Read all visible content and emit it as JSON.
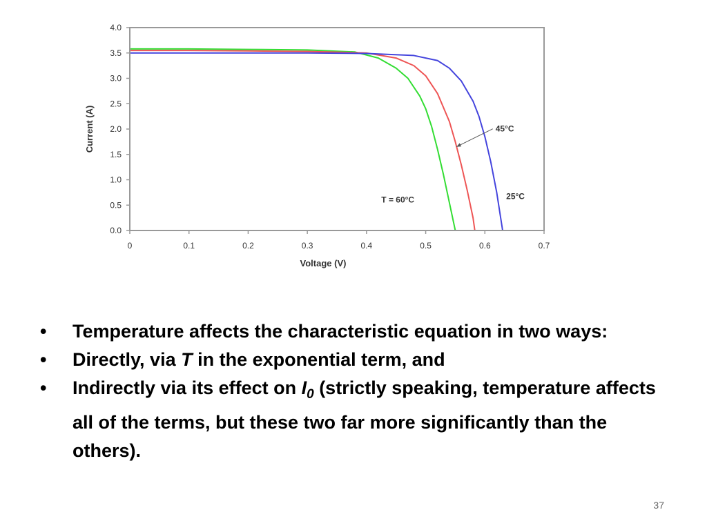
{
  "chart_data": {
    "type": "line",
    "xlabel": "Voltage (V)",
    "ylabel": "Current (A)",
    "xlim": [
      0,
      0.7
    ],
    "ylim": [
      0,
      4.0
    ],
    "x_ticks": [
      "0",
      "0.1",
      "0.2",
      "0.3",
      "0.4",
      "0.5",
      "0.6",
      "0.7"
    ],
    "y_ticks": [
      "0.0",
      "0.5",
      "1.0",
      "1.5",
      "2.0",
      "2.5",
      "3.0",
      "3.5",
      "4.0"
    ],
    "grid": false,
    "series": [
      {
        "name": "T = 60°C",
        "color": "#33dd33",
        "x": [
          0,
          0.1,
          0.2,
          0.3,
          0.38,
          0.42,
          0.45,
          0.47,
          0.49,
          0.5,
          0.51,
          0.52,
          0.53,
          0.54,
          0.55
        ],
        "y": [
          3.58,
          3.58,
          3.57,
          3.56,
          3.52,
          3.4,
          3.2,
          3.0,
          2.65,
          2.4,
          2.05,
          1.6,
          1.1,
          0.55,
          0.0
        ]
      },
      {
        "name": "45°C",
        "color": "#ee5555",
        "x": [
          0,
          0.1,
          0.2,
          0.3,
          0.4,
          0.45,
          0.48,
          0.5,
          0.52,
          0.54,
          0.55,
          0.56,
          0.57,
          0.58,
          0.583
        ],
        "y": [
          3.55,
          3.55,
          3.54,
          3.53,
          3.5,
          3.4,
          3.25,
          3.05,
          2.7,
          2.15,
          1.75,
          1.3,
          0.8,
          0.25,
          0.0
        ]
      },
      {
        "name": "25°C",
        "color": "#4444dd",
        "x": [
          0,
          0.1,
          0.2,
          0.3,
          0.4,
          0.48,
          0.52,
          0.54,
          0.56,
          0.58,
          0.59,
          0.6,
          0.61,
          0.62,
          0.63
        ],
        "y": [
          3.5,
          3.5,
          3.5,
          3.5,
          3.49,
          3.45,
          3.35,
          3.2,
          2.95,
          2.55,
          2.25,
          1.85,
          1.35,
          0.75,
          0.0
        ]
      }
    ],
    "annotations": [
      {
        "text": "T = 60°C",
        "x": 0.425,
        "y": 0.55
      },
      {
        "text": "45°C",
        "x": 0.618,
        "y": 1.95,
        "arrow_to": [
          0.552,
          1.65
        ]
      },
      {
        "text": "25°C",
        "x": 0.636,
        "y": 0.62
      }
    ]
  },
  "bullets": {
    "dot": "•",
    "item1": "Temperature affects the characteristic equation in two ways:",
    "item2_before": "Directly, via ",
    "item2_var": "T",
    "item2_after": " in the exponential term, and",
    "item3_before": "Indirectly via its effect on ",
    "item3_var": "I",
    "item3_sub": "0",
    "item3_after": " (strictly speaking, temperature affects all of the terms, but these two far more significantly than the others)."
  },
  "page_number": "37"
}
